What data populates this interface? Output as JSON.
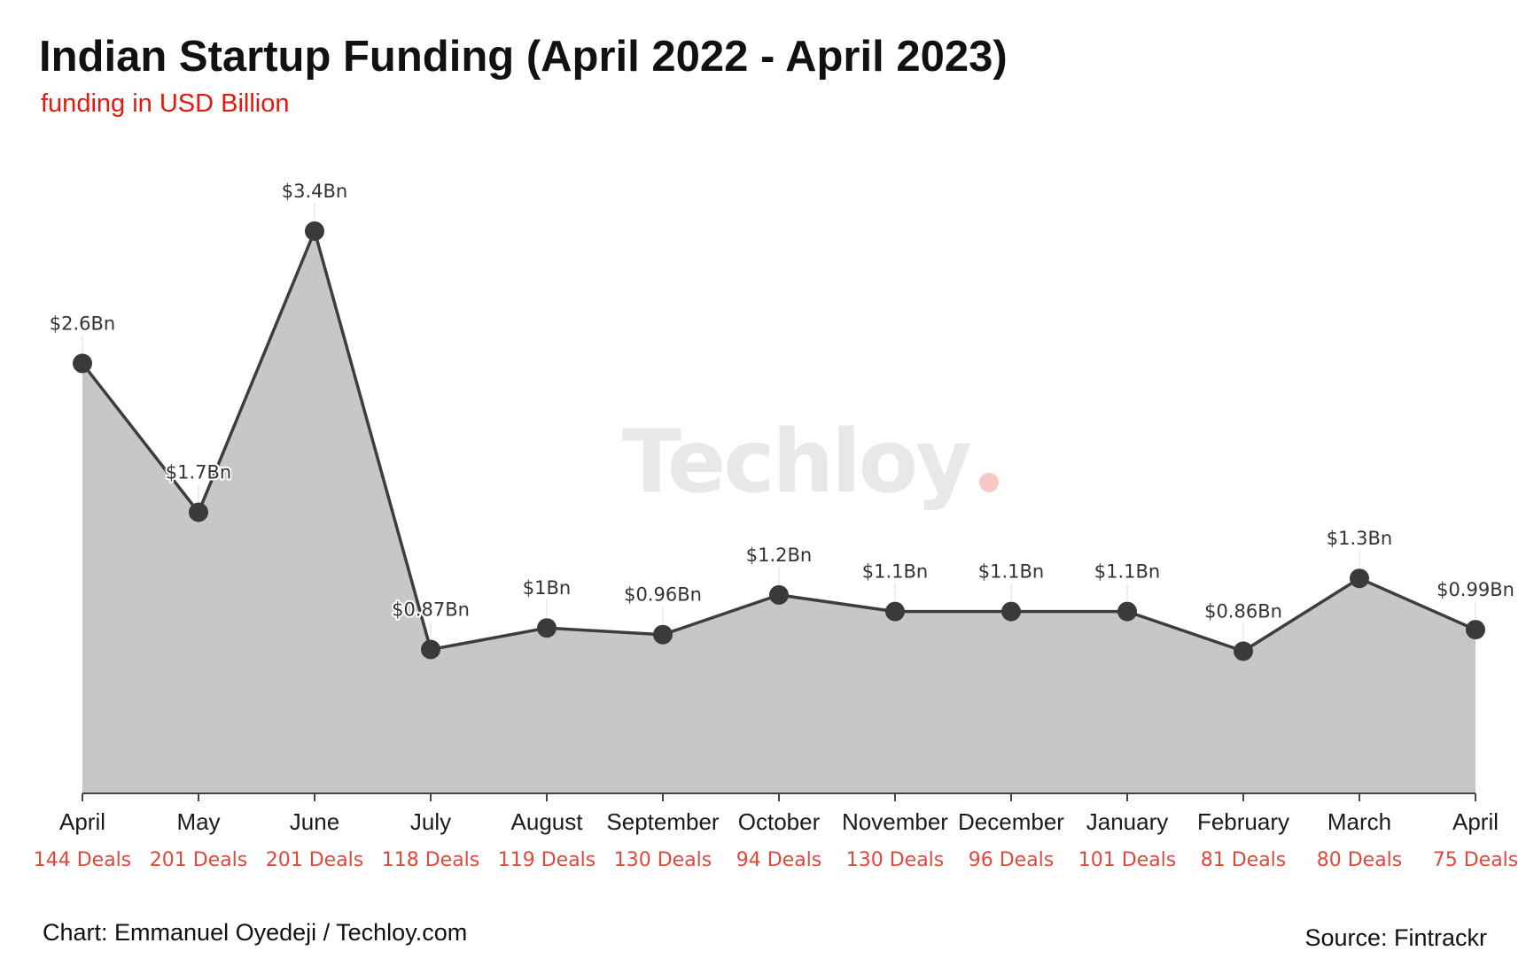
{
  "header": {
    "title": "Indian Startup Funding (April 2022 - April 2023)",
    "subtitle": "funding in USD Billion"
  },
  "footer": {
    "credit": "Chart: Emmanuel Oyedeji / Techloy.com",
    "source": "Source: Fintrackr"
  },
  "watermark": "Techloy",
  "colors": {
    "area_fill": "#c7c7c7",
    "line": "#3d3d3d",
    "marker": "#3a3a3a",
    "deals_text": "#e0483c",
    "subtitle": "#e3180f",
    "watermark_dot": "#f7c9c4"
  },
  "chart_data": {
    "type": "area",
    "title": "Indian Startup Funding (April 2022 - April 2023)",
    "subtitle": "funding in USD Billion",
    "categories": [
      "April",
      "May",
      "June",
      "July",
      "August",
      "September",
      "October",
      "November",
      "December",
      "January",
      "February",
      "March",
      "April"
    ],
    "series": [
      {
        "values": [
          2.6,
          1.7,
          3.4,
          0.87,
          1.0,
          0.96,
          1.2,
          1.1,
          1.1,
          1.1,
          0.86,
          1.3,
          0.99
        ],
        "labels": [
          "$2.6Bn",
          "$1.7Bn",
          "$3.4Bn",
          "$0.87Bn",
          "$1Bn",
          "$0.96Bn",
          "$1.2Bn",
          "$1.1Bn",
          "$1.1Bn",
          "$1.1Bn",
          "$0.86Bn",
          "$1.3Bn",
          "$0.99Bn"
        ]
      }
    ],
    "deals": [
      "144 Deals",
      "201 Deals",
      "201 Deals",
      "118 Deals",
      "119 Deals",
      "130 Deals",
      "94 Deals",
      "130 Deals",
      "96 Deals",
      "101 Deals",
      "81 Deals",
      "80 Deals",
      "75 Deals"
    ],
    "ylim": [
      0,
      3.4
    ],
    "grid": false,
    "legend": "none"
  }
}
